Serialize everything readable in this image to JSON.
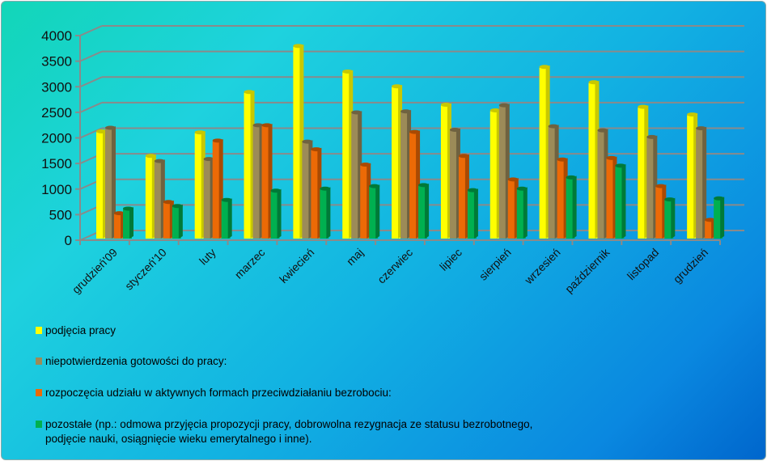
{
  "chart_data": {
    "type": "bar",
    "title": "",
    "xlabel": "",
    "ylabel": "",
    "ylim": [
      0,
      4000
    ],
    "yticks": [
      "0",
      "500",
      "1000",
      "1500",
      "2000",
      "2500",
      "3000",
      "3500",
      "4000"
    ],
    "categories": [
      "grudzień'09",
      "styczeń'10",
      "luty",
      "marzec",
      "kwiecień",
      "maj",
      "czerwiec",
      "lipiec",
      "sierpień",
      "wrzesień",
      "październik",
      "listopad",
      "grudzień"
    ],
    "series": [
      {
        "name": "podjęcia pracy",
        "color": "#ffff00",
        "values": [
          2080,
          1600,
          2060,
          2850,
          3750,
          3250,
          2960,
          2600,
          2490,
          3340,
          3040,
          2560,
          2410
        ]
      },
      {
        "name": "niepotwierdzenia gotowości do pracy:",
        "color": "#9c8b58",
        "values": [
          2150,
          1500,
          1540,
          2200,
          1880,
          2450,
          2470,
          2110,
          2590,
          2180,
          2100,
          1970,
          2140
        ]
      },
      {
        "name": "rozpoczęcia udziału w aktywnych formach przeciwdziałaniu bezrobociu:",
        "color": "#ec6a06",
        "values": [
          480,
          700,
          1900,
          2200,
          1730,
          1430,
          2070,
          1600,
          1140,
          1530,
          1560,
          1010,
          350
        ]
      },
      {
        "name": "pozostałe (np.: odmowa przyjęcia propozycji pracy, dobrowolna rezygnacja ze statusu bezrobotnego,",
        "name_line2": "podjęcie nauki, osiągnięcie wieku emerytalnego i inne).",
        "color": "#00b050",
        "values": [
          570,
          620,
          740,
          920,
          960,
          1010,
          1030,
          930,
          960,
          1180,
          1410,
          750,
          770
        ]
      }
    ],
    "legend_position": "bottom-left",
    "grid": true
  }
}
